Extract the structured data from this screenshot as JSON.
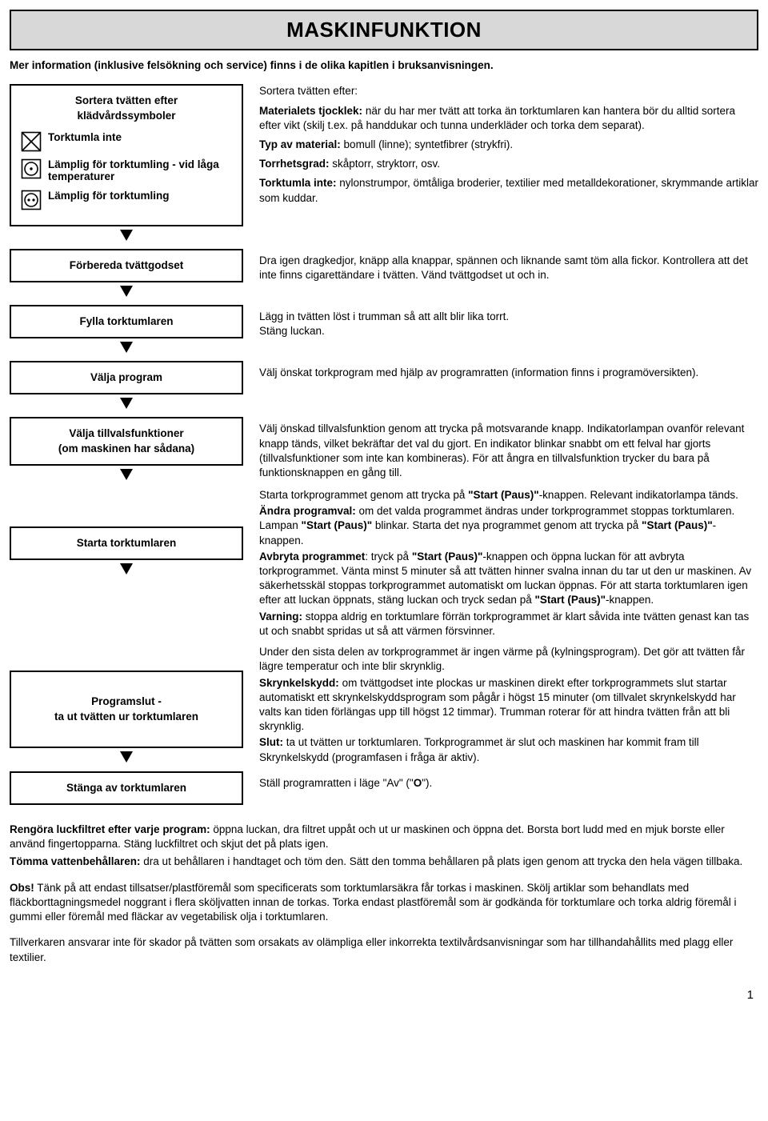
{
  "title": "MASKINFUNKTION",
  "subtitle": "Mer information (inklusive felsökning och service) finns i de olika kapitlen i bruksanvisningen.",
  "sortBox": {
    "heading1": "Sortera tvätten efter",
    "heading2": "klädvårdssymboler",
    "items": [
      {
        "label": "Torktumla inte"
      },
      {
        "label": "Lämplig för torktumling - vid låga temperaturer"
      },
      {
        "label": "Lämplig för torktumling"
      }
    ]
  },
  "sortText": {
    "intro": "Sortera tvätten efter:",
    "p1a": "Materialets tjocklek:",
    "p1b": " när du har mer tvätt att torka än torktumlaren kan hantera bör du alltid sortera efter vikt (skilj t.ex. på handdukar och tunna underkläder och torka dem separat).",
    "p2a": "Typ av material:",
    "p2b": " bomull (linne); syntetfibrer (strykfri).",
    "p3a": "Torrhetsgrad:",
    "p3b": " skåptorr, stryktorr, osv.",
    "p4a": "Torktumla inte:",
    "p4b": " nylonstrumpor, ömtåliga broderier, textilier med metalldekorationer, skrymmande artiklar som kuddar."
  },
  "steps": [
    {
      "label": "Förbereda tvättgodset",
      "body": "Dra igen dragkedjor, knäpp alla knappar, spännen och liknande samt töm alla fickor. Kontrollera att det inte finns cigarettändare i tvätten. Vänd tvättgodset ut och in."
    },
    {
      "label": "Fylla torktumlaren",
      "body": "Lägg in tvätten löst i trumman så att allt blir lika torrt.\nStäng luckan."
    },
    {
      "label": "Välja program",
      "body": "Välj önskat torkprogram med hjälp av programratten (information finns i programöversikten)."
    },
    {
      "label": "Välja tillvalsfunktioner\n(om maskinen har sådana)",
      "body": "Välj önskad tillvalsfunktion genom att trycka på motsvarande knapp. Indikatorlampan ovanför relevant knapp tänds, vilket bekräftar det val du gjort. En indikator blinkar snabbt om ett felval har gjorts (tillvalsfunktioner som inte kan kombineras). För att ångra en tillvalsfunktion trycker du bara på funktionsknappen en gång till."
    }
  ],
  "startStep": {
    "label": "Starta torktumlaren",
    "l1": "Starta torkprogrammet genom att trycka på ",
    "l1b": "\"Start (Paus)\"",
    "l1c": "-knappen. Relevant indikatorlampa tänds.",
    "l2a": "Ändra programval:",
    "l2b": " om det valda programmet ändras under torkprogrammet stoppas torktumlaren. Lampan ",
    "l2c": "\"Start (Paus)\"",
    "l2d": " blinkar. Starta det nya programmet genom att trycka på ",
    "l2e": "\"Start (Paus)\"",
    "l2f": "-knappen.",
    "l3a": "Avbryta programmet",
    "l3b": ": tryck på ",
    "l3c": "\"Start (Paus)\"",
    "l3d": "-knappen och öppna luckan för att avbryta torkprogrammet. Vänta minst 5 minuter så att tvätten hinner svalna innan du tar ut den ur maskinen. Av säkerhetsskäl stoppas torkprogrammet automatiskt om luckan öppnas. För att starta torktumlaren igen efter att luckan öppnats, stäng luckan och tryck sedan på ",
    "l3e": "\"Start (Paus)\"",
    "l3f": "-knappen.",
    "l4a": "Varning:",
    "l4b": " stoppa aldrig en torktumlare förrän torkprogrammet är klart såvida inte tvätten genast kan tas ut och snabbt spridas ut så att värmen försvinner."
  },
  "endStep": {
    "label": "Programslut -\nta ut tvätten ur torktumlaren",
    "l1": "Under den sista delen av torkprogrammet är ingen värme på (kylningsprogram). Det gör att tvätten får lägre temperatur och inte blir skrynklig.",
    "l2a": "Skrynkelskydd:",
    "l2b": " om tvättgodset inte plockas ur maskinen direkt efter torkprogrammets slut startar automatiskt ett skrynkelskyddsprogram som pågår i högst 15 minuter (om tillvalet skrynkelskydd har valts kan tiden förlängas upp till högst 12 timmar). Trumman roterar för att hindra tvätten från att bli skrynklig.",
    "l3a": "Slut:",
    "l3b": " ta ut tvätten ur torktumlaren. Torkprogrammet är slut och maskinen har kommit fram till Skrynkelskydd (programfasen i fråga är aktiv)."
  },
  "offStep": {
    "label": "Stänga av torktumlaren",
    "body1": "Ställ programratten i läge \"Av\" (\"",
    "body2": "O",
    "body3": "\")."
  },
  "bottom": {
    "p1a": "Rengöra luckfiltret efter varje program:",
    "p1b": " öppna luckan, dra filtret uppåt och ut ur maskinen och öppna det. Borsta bort ludd med en mjuk borste eller använd fingertopparna. Stäng luckfiltret och skjut det på plats igen.",
    "p2a": "Tömma vattenbehållaren:",
    "p2b": " dra ut behållaren i handtaget och töm den. Sätt den tomma behållaren på plats igen genom att trycka den hela vägen tillbaka.",
    "p3a": "Obs!",
    "p3b": " Tänk på att endast tillsatser/plastföremål som specificerats som torktumlarsäkra får torkas i maskinen. Skölj artiklar som behandlats med fläckborttagningsmedel noggrant i flera sköljvatten innan de torkas. Torka endast plastföremål som är godkända för torktumlare och torka aldrig föremål i gummi eller föremål med fläckar av vegetabilisk olja i torktumlaren.",
    "p4": "Tillverkaren ansvarar inte för skador på tvätten som orsakats av olämpliga eller inkorrekta textilvårdsanvisningar som har tillhandahållits med plagg eller textilier."
  },
  "pageNumber": "1"
}
